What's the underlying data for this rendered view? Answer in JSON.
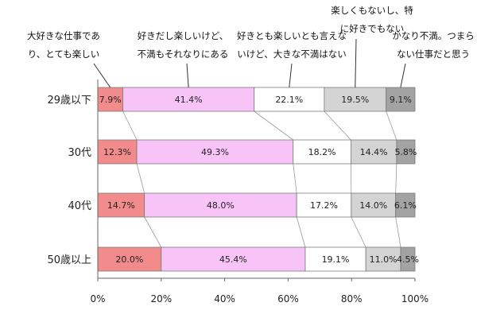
{
  "chart_data": {
    "type": "bar",
    "orientation": "horizontal",
    "stacked": "100%",
    "categories": [
      "29歳以下",
      "30代",
      "40代",
      "50歳以上"
    ],
    "series": [
      {
        "name": "大好きな仕事であり、とても楽しい",
        "color": "#f28b8b",
        "values": [
          7.9,
          12.3,
          14.7,
          20.0
        ]
      },
      {
        "name": "好きだし楽しいけど、不満もそれなりにある",
        "color": "#f8c4f8",
        "values": [
          41.4,
          49.3,
          48.0,
          45.4
        ]
      },
      {
        "name": "好きとも楽しいとも言えないけど、大きな不満はない",
        "color": "#ffffff",
        "values": [
          22.1,
          18.2,
          17.2,
          19.1
        ]
      },
      {
        "name": "楽しくもないし、特に好きでもない",
        "color": "#d4d4d4",
        "values": [
          19.5,
          14.4,
          14.0,
          11.0
        ]
      },
      {
        "name": "かなり不満。つまらない仕事だと思う",
        "color": "#a3a3a3",
        "values": [
          9.1,
          5.8,
          6.1,
          4.5
        ]
      }
    ],
    "data_labels": [
      [
        "7.9%",
        "41.4%",
        "22.1%",
        "19.5%",
        "9.1%"
      ],
      [
        "12.3%",
        "49.3%",
        "18.2%",
        "14.4%",
        "5.8%"
      ],
      [
        "14.7%",
        "48.0%",
        "17.2%",
        "14.0%",
        "6.1%"
      ],
      [
        "20.0%",
        "45.4%",
        "19.1%",
        "11.0%",
        "4.5%"
      ]
    ],
    "xlim": [
      0,
      100
    ],
    "xticks": [
      "0%",
      "20%",
      "40%",
      "60%",
      "80%",
      "100%"
    ],
    "legend_callouts": [
      [
        "大好きな仕事であ",
        "り、とても楽しい"
      ],
      [
        "好きだし楽しいけど、",
        "不満もそれなりにある"
      ],
      [
        "好きとも楽しいとも言えな",
        "いけど、大きな不満はない"
      ],
      [
        "楽しくもないし、特",
        "に好きでもない"
      ],
      [
        "かなり不満。つまら",
        "ない仕事だと思う"
      ]
    ],
    "grid": false,
    "connector_lines": true
  }
}
